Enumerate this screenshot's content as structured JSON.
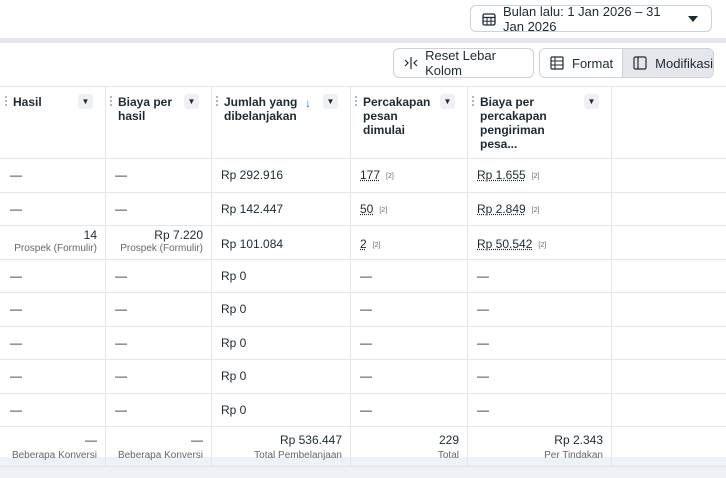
{
  "date_range": {
    "label": "Bulan lalu: 1 Jan 2026 – 31 Jan 2026"
  },
  "toolbar": {
    "reset_label": "Reset Lebar Kolom",
    "format_label": "Format",
    "modify_label": "Modifikasi"
  },
  "columns": [
    {
      "label": "Hasil"
    },
    {
      "label": "Biaya per\nhasil"
    },
    {
      "label": "Jumlah yang\ndibelanjakan",
      "sorted": "desc"
    },
    {
      "label": "Percakapan\npesan dimulai"
    },
    {
      "label": "Biaya per\npercakapan\npengiriman pesa..."
    }
  ],
  "rows": [
    {
      "hasil": "—",
      "biaya": "—",
      "jumlah": "Rp 292.916",
      "percakapan": "177",
      "p_note": "[2]",
      "biaya_pc": "Rp 1.655",
      "b_note": "[2]"
    },
    {
      "hasil": "—",
      "biaya": "—",
      "jumlah": "Rp 142.447",
      "percakapan": "50",
      "p_note": "[2]",
      "biaya_pc": "Rp 2.849",
      "b_note": "[2]"
    },
    {
      "hasil": "14",
      "hasil_sub": "Prospek (Formulir)",
      "biaya": "Rp 7.220",
      "biaya_sub": "Prospek (Formulir)",
      "jumlah": "Rp 101.084",
      "percakapan": "2",
      "p_note": "[2]",
      "biaya_pc": "Rp 50.542",
      "b_note": "[2]"
    },
    {
      "hasil": "—",
      "biaya": "—",
      "jumlah": "Rp 0",
      "percakapan": "—",
      "biaya_pc": "—"
    },
    {
      "hasil": "—",
      "biaya": "—",
      "jumlah": "Rp 0",
      "percakapan": "—",
      "biaya_pc": "—"
    },
    {
      "hasil": "—",
      "biaya": "—",
      "jumlah": "Rp 0",
      "percakapan": "—",
      "biaya_pc": "—"
    },
    {
      "hasil": "—",
      "biaya": "—",
      "jumlah": "Rp 0",
      "percakapan": "—",
      "biaya_pc": "—"
    },
    {
      "hasil": "—",
      "biaya": "—",
      "jumlah": "Rp 0",
      "percakapan": "—",
      "biaya_pc": "—"
    }
  ],
  "totals": {
    "hasil": "—",
    "hasil_sub": "Beberapa Konversi",
    "biaya": "—",
    "biaya_sub": "Beberapa Konversi",
    "jumlah": "Rp 536.447",
    "jumlah_sub": "Total Pembelanjaan",
    "percakapan": "229",
    "percakapan_sub": "Total",
    "biaya_pc": "Rp 2.343",
    "biaya_pc_sub": "Per Tindakan"
  },
  "colors": {
    "accent": "#1877f2",
    "border": "#cbd2d9",
    "gridline": "#e4e6eb",
    "text": "#1c2b33",
    "muted": "#65676b"
  },
  "icons": [
    "calendar-icon",
    "caret-down-icon",
    "column-resize-icon",
    "format-icon",
    "modify-icon",
    "sort-desc-icon"
  ]
}
